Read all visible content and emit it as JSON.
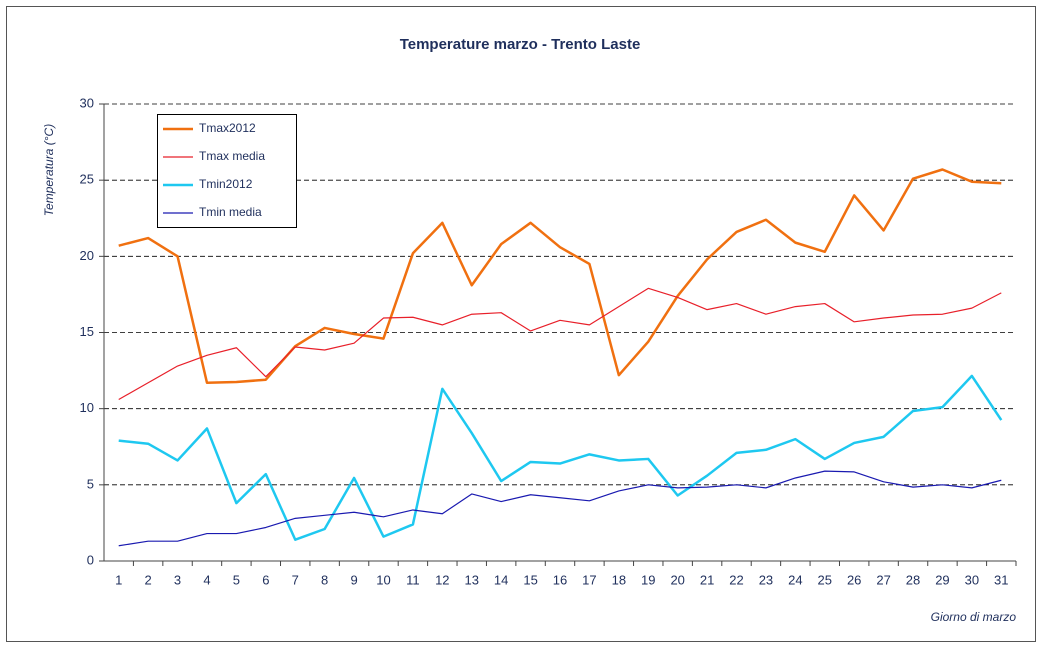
{
  "chart_data": {
    "type": "line",
    "title": "Temperature marzo - Trento Laste",
    "y_label": "Temperatura (°C)",
    "x_label": "Giorno di marzo",
    "categories": [
      "1",
      "2",
      "3",
      "4",
      "5",
      "6",
      "7",
      "8",
      "9",
      "10",
      "11",
      "12",
      "13",
      "14",
      "15",
      "16",
      "17",
      "18",
      "19",
      "20",
      "21",
      "22",
      "23",
      "24",
      "25",
      "26",
      "27",
      "28",
      "29",
      "30",
      "31"
    ],
    "series": [
      {
        "name": "Tmax2012",
        "color": "#f07010",
        "width": 2.5,
        "values": [
          20.7,
          21.2,
          20.0,
          11.7,
          11.75,
          11.9,
          14.1,
          15.3,
          14.9,
          14.6,
          20.2,
          22.2,
          18.1,
          20.8,
          22.2,
          20.6,
          19.5,
          12.2,
          14.4,
          17.4,
          19.8,
          21.6,
          22.4,
          20.9,
          20.3,
          24.0,
          21.7,
          25.1,
          25.7,
          24.9,
          24.8
        ]
      },
      {
        "name": "Tmax media",
        "color": "#e8202a",
        "width": 1.2,
        "values": [
          10.6,
          11.7,
          12.8,
          13.5,
          14.0,
          12.1,
          14.05,
          13.85,
          14.3,
          15.95,
          16.0,
          15.5,
          16.2,
          16.3,
          15.1,
          15.8,
          15.5,
          16.7,
          17.9,
          17.3,
          16.5,
          16.9,
          16.2,
          16.7,
          16.9,
          15.7,
          15.95,
          16.15,
          16.2,
          16.6,
          17.6
        ]
      },
      {
        "name": "Tmin2012",
        "color": "#1ec8f0",
        "width": 2.5,
        "values": [
          7.9,
          7.7,
          6.6,
          8.7,
          3.8,
          5.7,
          1.4,
          2.1,
          5.45,
          1.6,
          2.4,
          11.3,
          8.4,
          5.25,
          6.5,
          6.4,
          7.0,
          6.6,
          6.7,
          4.3,
          5.6,
          7.1,
          7.3,
          8.0,
          6.7,
          7.75,
          8.15,
          9.85,
          10.1,
          12.15,
          9.25
        ]
      },
      {
        "name": "Tmin media",
        "color": "#1a1ab0",
        "width": 1.2,
        "values": [
          1.0,
          1.3,
          1.3,
          1.8,
          1.8,
          2.2,
          2.8,
          3.0,
          3.2,
          2.9,
          3.35,
          3.1,
          4.4,
          3.9,
          4.35,
          4.15,
          3.95,
          4.6,
          5.0,
          4.8,
          4.85,
          5.0,
          4.8,
          5.45,
          5.9,
          5.85,
          5.2,
          4.85,
          5.0,
          4.8,
          5.3
        ]
      }
    ],
    "ylim": [
      0,
      30
    ],
    "yticks": [
      0,
      5,
      10,
      15,
      20,
      25,
      30
    ],
    "grid": true,
    "legend": "upper left"
  }
}
